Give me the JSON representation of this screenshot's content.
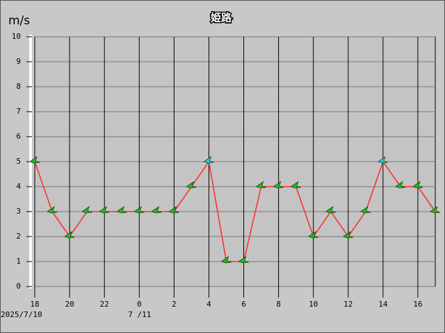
{
  "chart_data": {
    "type": "line",
    "title": "姫路",
    "y_unit": "m/s",
    "x": [
      0,
      1,
      2,
      3,
      4,
      5,
      6,
      7,
      8,
      9,
      10,
      11,
      12,
      13,
      14,
      15,
      16,
      17,
      18,
      19,
      20,
      21,
      22,
      23
    ],
    "values": [
      5,
      3,
      2,
      3,
      3,
      3,
      3,
      3,
      3,
      4,
      5,
      1,
      1,
      4,
      4,
      4,
      2,
      3,
      2,
      3,
      5,
      4,
      4,
      3
    ],
    "color": "#ff3030",
    "marker_colors": [
      "#22bb22",
      "#22bb22",
      "#22bb22",
      "#22bb22",
      "#22bb22",
      "#22bb22",
      "#22bb22",
      "#22bb22",
      "#22bb22",
      "#22bb22",
      "#22ccee",
      "#22bb22",
      "#22bb22",
      "#22bb22",
      "#22bb22",
      "#22bb22",
      "#22bb22",
      "#22bb22",
      "#22bb22",
      "#22bb22",
      "#22ccee",
      "#22bb22",
      "#22bb22",
      "#22bb22"
    ],
    "xlim": [
      0,
      23
    ],
    "xticks": [
      {
        "value": 0,
        "label": "18"
      },
      {
        "value": 2,
        "label": "20"
      },
      {
        "value": 4,
        "label": "22"
      },
      {
        "value": 6,
        "label": "0"
      },
      {
        "value": 8,
        "label": "2"
      },
      {
        "value": 10,
        "label": "4"
      },
      {
        "value": 12,
        "label": "6"
      },
      {
        "value": 14,
        "label": "8"
      },
      {
        "value": 16,
        "label": "10"
      },
      {
        "value": 18,
        "label": "12"
      },
      {
        "value": 20,
        "label": "14"
      },
      {
        "value": 22,
        "label": "16"
      }
    ],
    "date_labels": [
      {
        "value": 0,
        "label": "2025/7/10"
      },
      {
        "value": 6,
        "label": "7 /11"
      }
    ],
    "ylim": [
      0,
      10
    ],
    "yticks": [
      0,
      1,
      2,
      3,
      4,
      5,
      6,
      7,
      8,
      9,
      10
    ],
    "grid": true
  }
}
